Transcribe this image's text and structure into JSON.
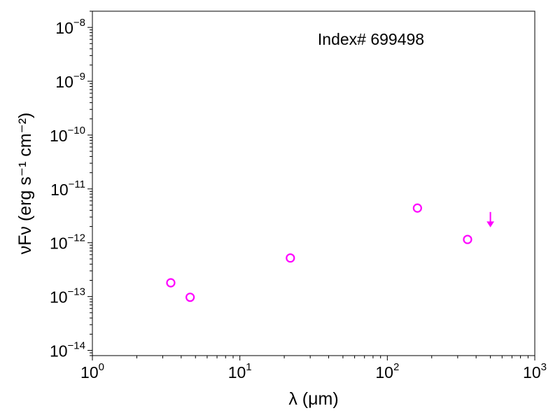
{
  "chart_data": {
    "type": "scatter",
    "xscale": "log",
    "yscale": "log",
    "xlim": [
      1,
      1000
    ],
    "ylim": [
      8e-15,
      2e-08
    ],
    "xlabel": "λ (μm)",
    "ylabel": "νFν (erg s⁻¹ cm⁻²)",
    "annotation": "Index# 699498",
    "x_ticks": [
      {
        "base": "10",
        "exp": "0"
      },
      {
        "base": "10",
        "exp": "1"
      },
      {
        "base": "10",
        "exp": "2"
      },
      {
        "base": "10",
        "exp": "3"
      }
    ],
    "y_ticks": [
      {
        "base": "10",
        "exp": "−14"
      },
      {
        "base": "10",
        "exp": "−13"
      },
      {
        "base": "10",
        "exp": "−12"
      },
      {
        "base": "10",
        "exp": "−11"
      },
      {
        "base": "10",
        "exp": "−10"
      },
      {
        "base": "10",
        "exp": "−9"
      },
      {
        "base": "10",
        "exp": "−8"
      }
    ],
    "marker_color": "#ff00ff",
    "points": [
      {
        "x": 3.4,
        "y": 1.8e-13
      },
      {
        "x": 4.6,
        "y": 9.7e-14
      },
      {
        "x": 22,
        "y": 5.2e-13
      },
      {
        "x": 160,
        "y": 4.4e-12
      },
      {
        "x": 350,
        "y": 1.15e-12
      }
    ],
    "upper_limits": [
      {
        "x": 500,
        "y": 2.6e-12
      }
    ]
  }
}
